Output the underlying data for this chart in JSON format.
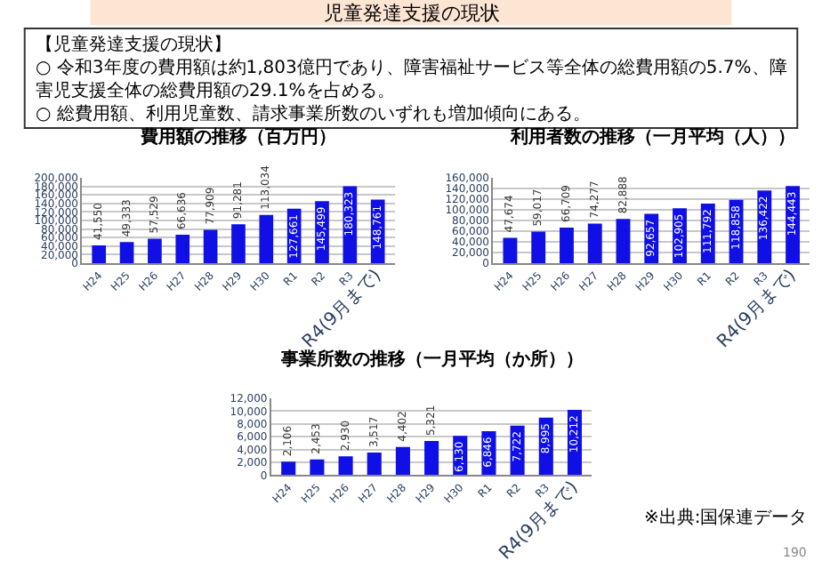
{
  "chart_data": [
    {
      "type": "other",
      "title": "児童発達支援の現状",
      "annotations": [
        "【児童発達支援の現状】",
        "○ 令和3年度の費用額は約1,803億円であり、障害福祉サービス等全体の総費用額の5.7%、障害児支援全体の総費用額の29.1%を占める。",
        "○ 総費用額、利用児童数、請求事業所数のいずれも増加傾向にある。",
        "190"
      ]
    },
    {
      "type": "bar",
      "title": "費用額の推移（百万円）",
      "categories": [
        "H24",
        "H25",
        "H26",
        "H27",
        "H28",
        "H29",
        "H30",
        "R1",
        "R2",
        "R3",
        "R4(9月まで)"
      ],
      "values": [
        41550,
        49333,
        57529,
        66636,
        77909,
        91281,
        113034,
        127661,
        145499,
        180323,
        148761
      ],
      "value_labels": [
        "41,550",
        "49,333",
        "57,529",
        "66,636",
        "77,909",
        "91,281",
        "113,034",
        "127,661",
        "145,499",
        "180,323",
        "148,761"
      ],
      "color": "#1010e6",
      "ylim": [
        0,
        200000
      ],
      "yticks": [
        0,
        {
          "value": 20000,
          "label": "20,000"
        },
        {
          "value": 40000,
          "label": "40,000"
        },
        {
          "value": 60000,
          "label": "60,000"
        },
        {
          "value": 80000,
          "label": "80,000"
        },
        {
          "value": 100000,
          "label": "100,000"
        },
        {
          "value": 120000,
          "label": "120,000"
        },
        {
          "value": 140000,
          "label": "140,000"
        },
        {
          "value": 160000,
          "label": "160,000"
        },
        {
          "value": 180000,
          "label": "180,000"
        },
        {
          "value": 200000,
          "label": "200,000"
        }
      ],
      "grid": "y"
    },
    {
      "type": "bar",
      "title": "利用者数の推移（一月平均（人））",
      "categories": [
        "H24",
        "H25",
        "H26",
        "H27",
        "H28",
        "H29",
        "H30",
        "R1",
        "R2",
        "R3",
        "R4(9月まで)"
      ],
      "values": [
        47674,
        59017,
        66709,
        74277,
        82888,
        92657,
        102905,
        111792,
        118858,
        136422,
        144443
      ],
      "value_labels": [
        "47,674",
        "59,017",
        "66,709",
        "74,277",
        "82,888",
        "92,657",
        "102,905",
        "111,792",
        "118,858",
        "136,422",
        "144,443"
      ],
      "color": "#1010e6",
      "ylim": [
        0,
        160000
      ],
      "yticks": [
        0,
        {
          "value": 20000,
          "label": "20,000"
        },
        {
          "value": 40000,
          "label": "40,000"
        },
        {
          "value": 60000,
          "label": "60,000"
        },
        {
          "value": 80000,
          "label": "80,000"
        },
        {
          "value": 100000,
          "label": "100,000"
        },
        {
          "value": 120000,
          "label": "120,000"
        },
        {
          "value": 140000,
          "label": "140,000"
        },
        {
          "value": 160000,
          "label": "160,000"
        }
      ],
      "grid": "y"
    },
    {
      "type": "bar",
      "title": "事業所数の推移（一月平均（か所））",
      "categories": [
        "H24",
        "H25",
        "H26",
        "H27",
        "H28",
        "H29",
        "H30",
        "R1",
        "R2",
        "R3",
        "R4(9月まで)"
      ],
      "values": [
        2106,
        2453,
        2930,
        3517,
        4402,
        5321,
        6130,
        6846,
        7722,
        8995,
        10212
      ],
      "value_labels": [
        "2,106",
        "2,453",
        "2,930",
        "3,517",
        "4,402",
        "5,321",
        "6,130",
        "6,846",
        "7,722",
        "8,995",
        "10,212"
      ],
      "color": "#1010e6",
      "ylim": [
        0,
        12000
      ],
      "yticks": [
        0,
        {
          "value": 2000,
          "label": "2,000"
        },
        {
          "value": 4000,
          "label": "4,000"
        },
        {
          "value": 6000,
          "label": "6,000"
        },
        {
          "value": 8000,
          "label": "8,000"
        },
        {
          "value": 10000,
          "label": "10,000"
        },
        {
          "value": 12000,
          "label": "12,000"
        }
      ],
      "grid": "y",
      "annotations": [
        "※出典:国保連データ"
      ]
    }
  ]
}
